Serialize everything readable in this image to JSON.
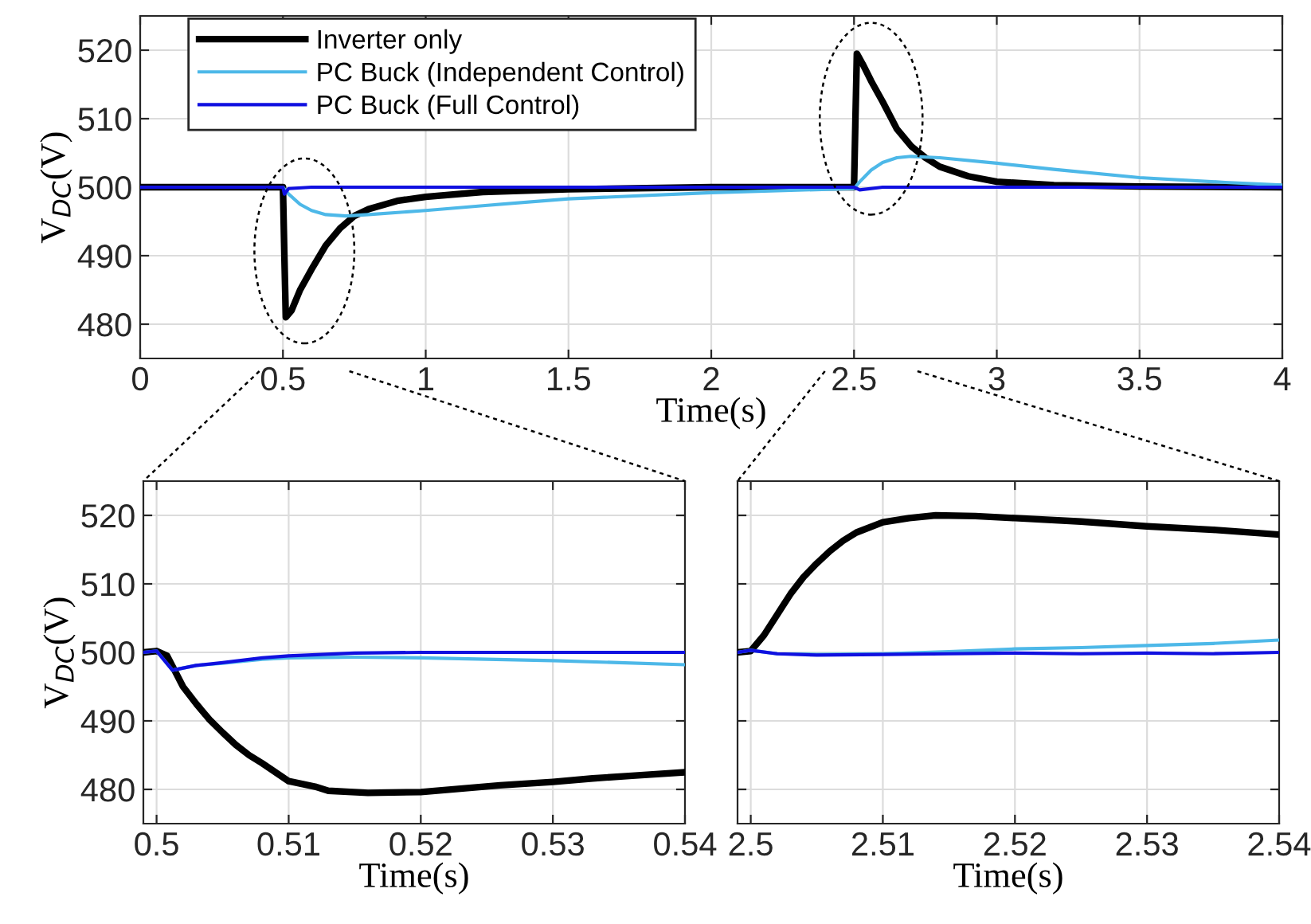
{
  "chart_data": [
    {
      "type": "line",
      "xlabel": "Time(s)",
      "ylabel": "V$_{DC}$(V)",
      "xlim": [
        0,
        4
      ],
      "xticks": [
        0,
        0.5,
        1,
        1.5,
        2,
        2.5,
        3,
        3.5,
        4
      ],
      "ylim": [
        475,
        525
      ],
      "yticks": [
        480,
        490,
        500,
        510,
        520
      ],
      "grid": true,
      "legend": "top left",
      "series": [
        {
          "name": "Inverter only",
          "color": "#000000",
          "x": [
            0,
            0.5,
            0.505,
            0.51,
            0.53,
            0.56,
            0.6,
            0.65,
            0.7,
            0.75,
            0.8,
            0.9,
            1,
            1.2,
            1.5,
            2,
            2.5,
            2.505,
            2.51,
            2.53,
            2.56,
            2.6,
            2.65,
            2.7,
            2.75,
            2.8,
            2.9,
            3,
            3.2,
            3.5,
            4
          ],
          "values": [
            500,
            500,
            490,
            481,
            482,
            485,
            488,
            491.5,
            494,
            495.8,
            496.8,
            498,
            498.6,
            499.3,
            499.7,
            500,
            500,
            510,
            519.5,
            518,
            515.5,
            512.5,
            508.5,
            506,
            504.3,
            503,
            501.6,
            500.8,
            500.3,
            500.1,
            500
          ]
        },
        {
          "name": "PC Buck (Independent Control)",
          "color": "#4db8e8",
          "x": [
            0,
            0.5,
            0.52,
            0.56,
            0.6,
            0.65,
            0.72,
            0.8,
            1,
            1.2,
            1.5,
            2,
            2.5,
            2.52,
            2.56,
            2.6,
            2.65,
            2.7,
            2.8,
            3,
            3.2,
            3.5,
            3.8,
            4
          ],
          "values": [
            500,
            500,
            499,
            497.5,
            496.6,
            496,
            495.8,
            496,
            496.6,
            497.3,
            498.3,
            499.2,
            499.8,
            500.8,
            502.5,
            503.6,
            504.3,
            504.5,
            504.3,
            503.5,
            502.6,
            501.4,
            500.7,
            500.3
          ]
        },
        {
          "name": "PC Buck (Full Control)",
          "color": "#1010e0",
          "x": [
            0,
            0.5,
            0.505,
            0.52,
            0.6,
            1,
            2,
            2.5,
            2.52,
            2.6,
            3,
            4
          ],
          "values": [
            500,
            500,
            499,
            499.8,
            500,
            500,
            500,
            500,
            499.6,
            500,
            500,
            500
          ]
        }
      ]
    },
    {
      "type": "line",
      "xlabel": "Time(s)",
      "ylabel": "V$_{DC}$(V)",
      "xlim": [
        0.499,
        0.54
      ],
      "xticks": [
        0.5,
        0.51,
        0.52,
        0.53,
        0.54
      ],
      "ylim": [
        475,
        525
      ],
      "yticks": [
        480,
        490,
        500,
        510,
        520
      ],
      "grid": true,
      "series": [
        {
          "color": "#000000",
          "x": [
            0.499,
            0.5,
            0.5008,
            0.502,
            0.503,
            0.504,
            0.505,
            0.506,
            0.507,
            0.508,
            0.51,
            0.512,
            0.513,
            0.516,
            0.52,
            0.523,
            0.526,
            0.53,
            0.533,
            0.536,
            0.54
          ],
          "values": [
            500,
            500.2,
            499.5,
            495,
            492.5,
            490.2,
            488.3,
            486.5,
            485,
            483.8,
            481.2,
            480.4,
            479.8,
            479.5,
            479.6,
            480.1,
            480.6,
            481.1,
            481.6,
            482,
            482.5
          ]
        },
        {
          "color": "#4db8e8",
          "x": [
            0.499,
            0.5,
            0.5012,
            0.503,
            0.505,
            0.508,
            0.51,
            0.515,
            0.52,
            0.525,
            0.53,
            0.535,
            0.54
          ],
          "values": [
            500,
            500.2,
            497.4,
            498.1,
            498.4,
            499,
            499.2,
            499.3,
            499.2,
            499,
            498.8,
            498.5,
            498.2
          ]
        },
        {
          "color": "#1010e0",
          "x": [
            0.499,
            0.5,
            0.5012,
            0.503,
            0.505,
            0.508,
            0.51,
            0.515,
            0.52,
            0.525,
            0.53,
            0.535,
            0.54
          ],
          "values": [
            500,
            500.2,
            497.4,
            498.1,
            498.5,
            499.2,
            499.5,
            499.9,
            500,
            500,
            500,
            500,
            500
          ]
        }
      ]
    },
    {
      "type": "line",
      "xlabel": "Time(s)",
      "xlim": [
        2.499,
        2.54
      ],
      "xticks": [
        2.5,
        2.51,
        2.52,
        2.53,
        2.54
      ],
      "ylim": [
        475,
        525
      ],
      "yticks": [
        480,
        490,
        500,
        510,
        520
      ],
      "grid": true,
      "tick_labels": "x",
      "series": [
        {
          "color": "#000000",
          "x": [
            2.499,
            2.5,
            2.501,
            2.502,
            2.503,
            2.504,
            2.505,
            2.506,
            2.507,
            2.508,
            2.51,
            2.512,
            2.514,
            2.517,
            2.52,
            2.525,
            2.53,
            2.535,
            2.54
          ],
          "values": [
            500,
            500.2,
            502.5,
            505.5,
            508.5,
            511,
            513,
            514.8,
            516.3,
            517.5,
            519,
            519.6,
            520,
            519.9,
            519.6,
            519.1,
            518.4,
            517.9,
            517.2
          ]
        },
        {
          "color": "#4db8e8",
          "x": [
            2.499,
            2.5,
            2.502,
            2.505,
            2.51,
            2.515,
            2.52,
            2.525,
            2.53,
            2.535,
            2.54
          ],
          "values": [
            500,
            500.3,
            499.8,
            499.7,
            499.8,
            500.1,
            500.5,
            500.7,
            501,
            501.3,
            501.8
          ]
        },
        {
          "color": "#1010e0",
          "x": [
            2.499,
            2.5,
            2.502,
            2.505,
            2.51,
            2.515,
            2.52,
            2.525,
            2.53,
            2.535,
            2.54
          ],
          "values": [
            500,
            500.3,
            499.8,
            499.6,
            499.7,
            499.8,
            499.9,
            499.8,
            499.9,
            499.8,
            500
          ]
        }
      ]
    }
  ]
}
